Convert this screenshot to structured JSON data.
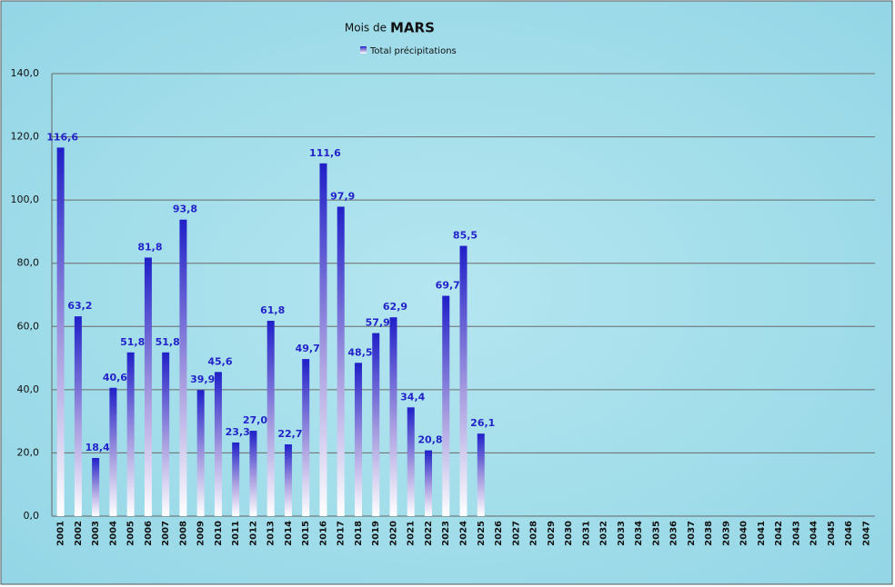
{
  "chart_data": {
    "type": "bar",
    "title": "Mois de",
    "title_emphasis": "MARS",
    "categories": [
      "2001",
      "2002",
      "2003",
      "2004",
      "2005",
      "2006",
      "2007",
      "2008",
      "2009",
      "2010",
      "2011",
      "2012",
      "2013",
      "2014",
      "2015",
      "2016",
      "2017",
      "2018",
      "2019",
      "2020",
      "2021",
      "2022",
      "2023",
      "2024",
      "2025",
      "2026",
      "2027",
      "2028",
      "2029",
      "2030",
      "2031",
      "2032",
      "2033",
      "2034",
      "2035",
      "2036",
      "2037",
      "2038",
      "2039",
      "2040",
      "2041",
      "2042",
      "2043",
      "2044",
      "2045",
      "2046",
      "2047"
    ],
    "series": [
      {
        "name": "Total précipitations",
        "color": "#2323c8",
        "values": [
          116.6,
          63.2,
          18.4,
          40.6,
          51.8,
          81.8,
          51.8,
          93.8,
          39.9,
          45.6,
          23.3,
          27.0,
          61.8,
          22.7,
          49.7,
          111.6,
          97.9,
          48.5,
          57.9,
          62.9,
          34.4,
          20.8,
          69.7,
          85.5,
          26.1,
          null,
          null,
          null,
          null,
          null,
          null,
          null,
          null,
          null,
          null,
          null,
          null,
          null,
          null,
          null,
          null,
          null,
          null,
          null,
          null,
          null,
          null
        ],
        "value_labels": [
          "116,6",
          "63,2",
          "18,4",
          "40,6",
          "51,8",
          "81,8",
          "51,8",
          "93,8",
          "39,9",
          "45,6",
          "23,3",
          "27,0",
          "61,8",
          "22,7",
          "49,7",
          "111,6",
          "97,9",
          "48,5",
          "57,9",
          "62,9",
          "34,4",
          "20,8",
          "69,7",
          "85,5",
          "26,1",
          null,
          null,
          null,
          null,
          null,
          null,
          null,
          null,
          null,
          null,
          null,
          null,
          null,
          null,
          null,
          null,
          null,
          null,
          null,
          null,
          null,
          null
        ]
      }
    ],
    "ylim": [
      0,
      140
    ],
    "yticks": [
      {
        "value": 0,
        "label": "0,0"
      },
      {
        "value": 20,
        "label": "20,0"
      },
      {
        "value": 40,
        "label": "40,0"
      },
      {
        "value": 60,
        "label": "60,0"
      },
      {
        "value": 80,
        "label": "80,0"
      },
      {
        "value": 100,
        "label": "100,0"
      },
      {
        "value": 120,
        "label": "120,0"
      },
      {
        "value": 140,
        "label": "140,0"
      }
    ],
    "grid": true
  }
}
